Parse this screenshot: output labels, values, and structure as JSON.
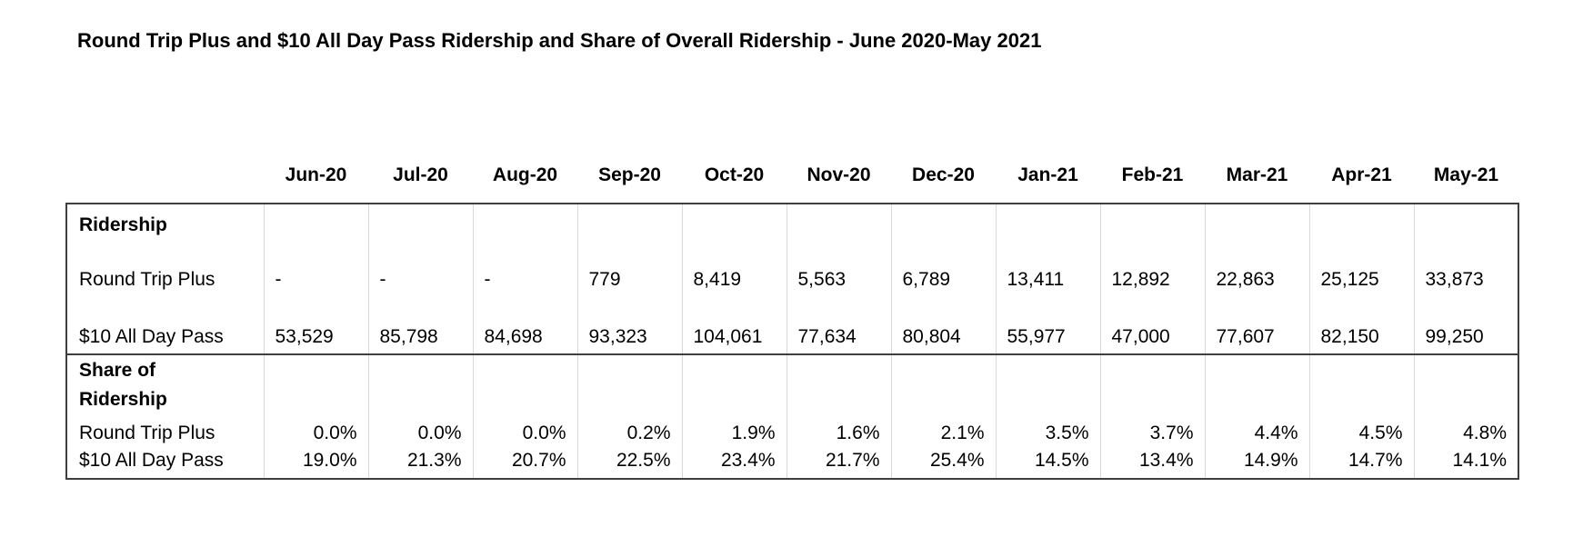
{
  "title": "Round Trip Plus and $10 All Day Pass Ridership and Share of Overall Ridership - June 2020-May 2021",
  "table": {
    "months": [
      "Jun-20",
      "Jul-20",
      "Aug-20",
      "Sep-20",
      "Oct-20",
      "Nov-20",
      "Dec-20",
      "Jan-21",
      "Feb-21",
      "Mar-21",
      "Apr-21",
      "May-21"
    ],
    "sections": [
      {
        "label": "Ridership",
        "rows": [
          {
            "label": "Round Trip Plus",
            "values": [
              "-",
              "-",
              "-",
              "779",
              "8,419",
              "5,563",
              "6,789",
              "13,411",
              "12,892",
              "22,863",
              "25,125",
              "33,873"
            ]
          },
          {
            "label": "$10 All Day Pass",
            "values": [
              "53,529",
              "85,798",
              "84,698",
              "93,323",
              "104,061",
              "77,634",
              "80,804",
              "55,977",
              "47,000",
              "77,607",
              "82,150",
              "99,250"
            ]
          }
        ]
      },
      {
        "label": "Share of Ridership",
        "rows": [
          {
            "label": "Round Trip Plus",
            "values": [
              "0.0%",
              "0.0%",
              "0.0%",
              "0.2%",
              "1.9%",
              "1.6%",
              "2.1%",
              "3.5%",
              "3.7%",
              "4.4%",
              "4.5%",
              "4.8%"
            ]
          },
          {
            "label": "$10 All Day Pass",
            "values": [
              "19.0%",
              "21.3%",
              "20.7%",
              "22.5%",
              "23.4%",
              "21.7%",
              "25.4%",
              "14.5%",
              "13.4%",
              "14.9%",
              "14.7%",
              "14.1%"
            ]
          }
        ]
      }
    ]
  },
  "colors": {
    "background": "#ffffff",
    "text": "#000000",
    "border_dark": "#3f3f3f",
    "gridline_light": "#d9d9d9"
  }
}
